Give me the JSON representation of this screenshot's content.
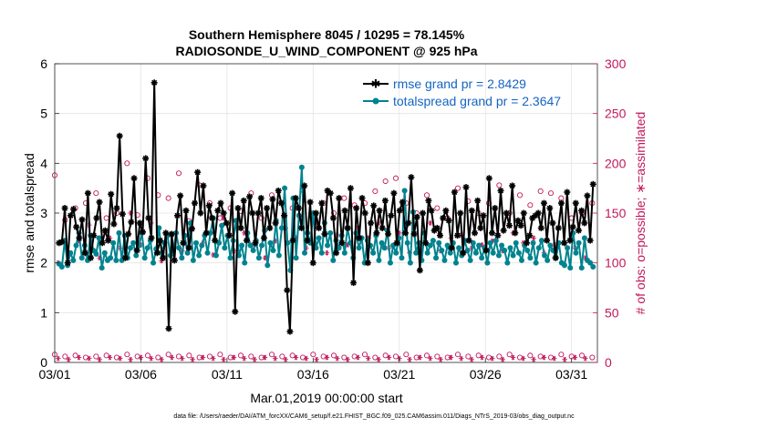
{
  "chart_data": {
    "type": "line",
    "title_line1": "Southern Hemisphere 8045 / 10295 = 78.145%",
    "title_line2": "RADIOSONDE_U_WIND_COMPONENT @ 925 hPa",
    "xlabel": "Mar.01,2019 00:00:00 start",
    "ylabel": "rmse and totalspread",
    "ylabel_right": "# of obs: o=possible; ∗=assimilated",
    "xlim": [
      0,
      31.5
    ],
    "ylim": [
      0,
      6
    ],
    "ylim_right": [
      0,
      300
    ],
    "x_ticks": [
      {
        "value": 0,
        "label": "03/01"
      },
      {
        "value": 5,
        "label": "03/06"
      },
      {
        "value": 10,
        "label": "03/11"
      },
      {
        "value": 15,
        "label": "03/16"
      },
      {
        "value": 20,
        "label": "03/21"
      },
      {
        "value": 25,
        "label": "03/26"
      },
      {
        "value": 30,
        "label": "03/31"
      }
    ],
    "y_ticks": [
      "0",
      "1",
      "2",
      "3",
      "4",
      "5",
      "6"
    ],
    "y_ticks_right": [
      "0",
      "50",
      "100",
      "150",
      "200",
      "250",
      "300"
    ],
    "grid": true,
    "footer_text": "data file: /Users/raeder/DAI/ATM_forcXX/CAM6_setup/f.e21.FHIST_BGC.f09_025.CAM6assim.011/Diags_NTrS_2019-03/obs_diag_output.nc",
    "series": [
      {
        "name": "rmse",
        "legend": "rmse grand pr = 2.8429",
        "color": "#000000",
        "axis": "left",
        "values": [
          2.4,
          2.42,
          3.1,
          2.0,
          2.95,
          3.08,
          2.72,
          2.5,
          2.87,
          2.2,
          3.4,
          2.1,
          2.55,
          2.9,
          3.22,
          2.4,
          2.65,
          2.45,
          3.38,
          2.78,
          3.1,
          4.55,
          2.98,
          2.1,
          2.58,
          2.82,
          3.7,
          2.25,
          2.8,
          2.62,
          4.1,
          2.9,
          2.5,
          5.62,
          2.2,
          2.45,
          2.1,
          2.6,
          0.68,
          2.58,
          2.05,
          2.95,
          3.35,
          2.4,
          3.05,
          2.3,
          2.68,
          3.2,
          3.82,
          3.0,
          3.55,
          2.6,
          3.15,
          2.9,
          2.45,
          3.05,
          3.2,
          3.0,
          2.8,
          2.55,
          3.4,
          1.02,
          3.1,
          2.7,
          3.25,
          2.45,
          3.33,
          3.0,
          2.4,
          3.0,
          3.3,
          2.5,
          3.1,
          2.7,
          3.28,
          2.8,
          3.45,
          3.2,
          2.95,
          1.45,
          0.62,
          2.45,
          3.3,
          3.1,
          2.7,
          3.55,
          2.45,
          3.22,
          2.0,
          3.0,
          2.7,
          3.2,
          2.58,
          3.45,
          3.4,
          2.9,
          2.2,
          3.3,
          2.4,
          3.05,
          2.7,
          3.5,
          1.6,
          3.1,
          2.5,
          3.3,
          3.0,
          2.0,
          2.8,
          3.15,
          2.6,
          3.05,
          2.7,
          3.25,
          2.58,
          2.95,
          3.4,
          2.4,
          3.05,
          3.22,
          2.6,
          2.8,
          3.72,
          2.58,
          2.92,
          1.85,
          3.0,
          2.4,
          3.25,
          3.05,
          2.65,
          2.7,
          2.55,
          2.9,
          3.05,
          2.85,
          2.3,
          3.42,
          2.55,
          3.0,
          2.2,
          3.52,
          2.45,
          3.05,
          2.6,
          3.25,
          2.7,
          2.95,
          2.25,
          3.7,
          2.6,
          3.1,
          2.55,
          3.45,
          2.65,
          3.0,
          2.75,
          3.55,
          2.6,
          2.85,
          2.75,
          3.0,
          2.4,
          2.55,
          2.9,
          2.95,
          3.0,
          2.7,
          3.2,
          2.45,
          3.1,
          2.8,
          2.1,
          2.7,
          3.2,
          2.4,
          3.42,
          2.45,
          2.72,
          3.2,
          2.65,
          3.05,
          2.8,
          3.35,
          2.45,
          3.58
        ]
      },
      {
        "name": "totalspread",
        "legend": "totalspread grand pr = 2.3647",
        "color": "#00838f",
        "axis": "left",
        "values": [
          1.98,
          1.92,
          2.45,
          1.95,
          2.2,
          2.05,
          2.35,
          2.6,
          2.1,
          2.35,
          2.05,
          2.55,
          2.25,
          2.18,
          2.5,
          1.9,
          2.2,
          2.05,
          2.1,
          2.4,
          2.05,
          2.6,
          2.05,
          2.55,
          2.1,
          2.3,
          2.4,
          2.15,
          2.35,
          2.6,
          2.1,
          2.3,
          2.45,
          2.0,
          2.28,
          2.7,
          2.2,
          2.4,
          2.55,
          2.15,
          2.25,
          2.6,
          2.3,
          2.1,
          2.55,
          2.2,
          2.8,
          2.05,
          2.4,
          2.15,
          2.35,
          2.55,
          2.2,
          2.6,
          2.9,
          2.15,
          2.4,
          2.75,
          2.3,
          2.55,
          2.1,
          2.45,
          2.85,
          2.15,
          2.35,
          2.0,
          2.6,
          2.35,
          2.25,
          2.45,
          2.1,
          2.35,
          2.65,
          1.95,
          2.4,
          2.25,
          2.85,
          2.15,
          2.7,
          3.5,
          2.4,
          1.85,
          3.3,
          2.1,
          2.95,
          3.92,
          2.2,
          2.6,
          2.4,
          3.0,
          2.3,
          2.5,
          2.2,
          2.8,
          2.35,
          2.6,
          2.05,
          2.45,
          2.3,
          2.55,
          2.2,
          2.7,
          2.4,
          2.1,
          2.6,
          2.3,
          2.5,
          2.0,
          2.45,
          2.35,
          2.2,
          2.55,
          2.05,
          2.4,
          2.3,
          2.65,
          2.0,
          2.35,
          2.2,
          2.5,
          2.1,
          3.45,
          2.4,
          2.0,
          3.02,
          2.2,
          2.4,
          2.05,
          2.6,
          2.2,
          2.35,
          2.45,
          2.1,
          2.4,
          2.25,
          2.05,
          2.35,
          2.2,
          2.4,
          2.0,
          2.3,
          2.15,
          2.45,
          2.25,
          2.05,
          2.4,
          2.2,
          2.35,
          2.1,
          2.3,
          2.0,
          2.4,
          2.2,
          2.45,
          2.15,
          2.35,
          2.25,
          2.0,
          2.3,
          2.15,
          2.4,
          2.2,
          2.05,
          2.35,
          2.25,
          2.1,
          2.4,
          2.0,
          2.3,
          2.45,
          2.15,
          2.05,
          2.35,
          2.25,
          2.1,
          2.4,
          2.0,
          1.95,
          2.3,
          1.9,
          2.6,
          2.2,
          2.4,
          1.9,
          2.5,
          2.05,
          2.0,
          1.92
        ]
      },
      {
        "name": "obs_possible",
        "marker": "o",
        "color": "#c2185b",
        "axis": "right",
        "x": [
          0.0,
          0.6,
          1.2,
          1.8,
          2.4,
          3.0,
          3.6,
          4.2,
          4.8,
          5.4,
          6.0,
          6.6,
          7.2,
          7.8,
          8.4,
          9.0,
          9.6,
          10.2,
          10.8,
          11.4,
          12.0,
          12.6,
          13.2,
          13.8,
          14.4,
          15.0,
          15.6,
          16.2,
          16.8,
          17.4,
          18.0,
          18.6,
          19.2,
          19.8,
          20.4,
          21.0,
          21.6,
          22.2,
          22.8,
          23.4,
          24.0,
          24.6,
          25.2,
          25.8,
          26.4,
          27.0,
          27.6,
          28.2,
          28.8,
          29.4,
          30.0,
          30.6,
          31.2
        ],
        "values": [
          188,
          143,
          155,
          160,
          170,
          145,
          150,
          200,
          148,
          185,
          168,
          165,
          190,
          142,
          178,
          160,
          145,
          155,
          152,
          170,
          145,
          168,
          160,
          155,
          173,
          148,
          160,
          150,
          165,
          158,
          160,
          172,
          182,
          185,
          160,
          150,
          168,
          155,
          145,
          175,
          162,
          150,
          160,
          178,
          150,
          168,
          158,
          172,
          170,
          165,
          145,
          150,
          160
        ]
      },
      {
        "name": "obs_assimilated",
        "marker": "*",
        "color": "#c2185b",
        "axis": "right",
        "x": [
          0.2,
          0.8,
          1.4,
          2.0,
          2.6,
          3.2,
          3.8,
          4.4,
          5.0,
          5.6,
          6.2,
          6.8,
          7.4,
          8.0,
          8.6,
          9.2,
          9.8,
          10.4,
          11.0,
          11.6,
          12.2,
          12.8,
          13.4,
          14.0,
          14.6,
          15.2,
          15.8,
          16.4,
          17.0,
          17.6,
          18.2,
          18.8,
          19.4,
          20.0,
          20.6,
          21.2,
          21.8,
          22.4,
          23.0,
          23.6,
          24.2,
          24.8,
          25.4,
          26.0,
          26.6,
          27.2,
          27.8,
          28.4,
          29.0,
          29.6,
          30.2,
          30.8
        ],
        "values": [
          100,
          110,
          122,
          138,
          105,
          125,
          115,
          150,
          118,
          140,
          102,
          128,
          112,
          135,
          120,
          108,
          145,
          112,
          130,
          118,
          105,
          122,
          135,
          125,
          115,
          140,
          110,
          128,
          118,
          135,
          125,
          140,
          115,
          130,
          110,
          120,
          140,
          112,
          125,
          128,
          115,
          118,
          122,
          112,
          130,
          120,
          125,
          110,
          118,
          120,
          115,
          105
        ]
      },
      {
        "name": "obs_possible_low",
        "marker": "o",
        "color": "#c2185b",
        "axis": "right",
        "x": [
          0.0,
          0.6,
          1.2,
          1.8,
          2.4,
          3.0,
          3.6,
          4.2,
          4.8,
          5.4,
          6.0,
          6.6,
          7.2,
          7.8,
          8.4,
          9.0,
          9.6,
          10.2,
          10.8,
          11.4,
          12.0,
          12.6,
          13.2,
          13.8,
          14.4,
          15.0,
          15.6,
          16.2,
          16.8,
          17.4,
          18.0,
          18.6,
          19.2,
          19.8,
          20.4,
          21.0,
          21.6,
          22.2,
          22.8,
          23.4,
          24.0,
          24.6,
          25.2,
          25.8,
          26.4,
          27.0,
          27.6,
          28.2,
          28.8,
          29.4,
          30.0,
          30.6,
          31.2
        ],
        "values": [
          8,
          6,
          7,
          5,
          6,
          7,
          5,
          8,
          6,
          7,
          5,
          8,
          6,
          7,
          5,
          6,
          8,
          5,
          7,
          6,
          5,
          8,
          6,
          7,
          5,
          8,
          6,
          7,
          5,
          6,
          8,
          5,
          7,
          6,
          8,
          5,
          7,
          6,
          5,
          8,
          6,
          7,
          5,
          6,
          8,
          5,
          7,
          6,
          5,
          8,
          6,
          7,
          5
        ]
      },
      {
        "name": "obs_assimilated_low",
        "marker": "*",
        "color": "#c2185b",
        "axis": "right",
        "x": [
          0.2,
          0.8,
          1.4,
          2.0,
          2.6,
          3.2,
          3.8,
          4.4,
          5.0,
          5.6,
          6.2,
          6.8,
          7.4,
          8.0,
          8.6,
          9.2,
          9.8,
          10.4,
          11.0,
          11.6,
          12.2,
          12.8,
          13.4,
          14.0,
          14.6,
          15.2,
          15.8,
          16.4,
          17.0,
          17.6,
          18.2,
          18.8,
          19.4,
          20.0,
          20.6,
          21.2,
          21.8,
          22.4,
          23.0,
          23.6,
          24.2,
          24.8,
          25.4,
          26.0,
          26.6,
          27.2,
          27.8,
          28.4,
          29.0,
          29.6,
          30.2,
          30.8
        ],
        "values": [
          4,
          3,
          5,
          4,
          3,
          5,
          4,
          3,
          5,
          4,
          3,
          5,
          4,
          3,
          5,
          4,
          3,
          5,
          4,
          3,
          5,
          4,
          3,
          5,
          4,
          3,
          5,
          4,
          3,
          5,
          4,
          3,
          5,
          4,
          3,
          5,
          4,
          3,
          5,
          4,
          3,
          5,
          4,
          3,
          5,
          4,
          3,
          5,
          4,
          3,
          5,
          4
        ]
      }
    ]
  }
}
